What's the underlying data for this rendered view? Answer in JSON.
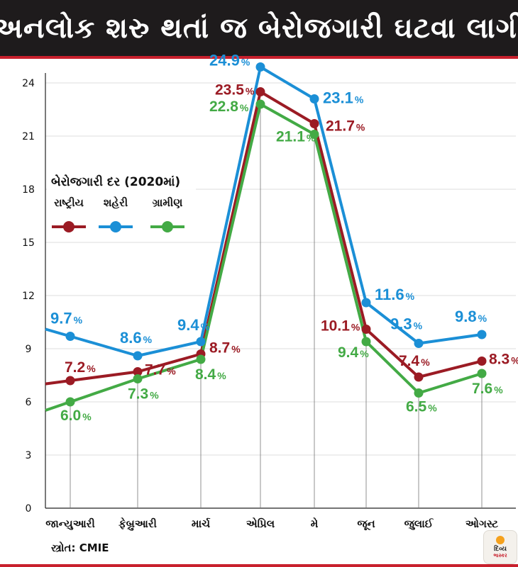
{
  "title": "અનલોક શરુ થતાં જ બેરોજગારી ઘટવા લાગી",
  "source": "સ્ત્રોત: CMIE",
  "logo": {
    "line1": "દિવ્ય",
    "line2": "ભાસ્કર"
  },
  "colors": {
    "national": "#9b1b24",
    "urban": "#1b8fd6",
    "rural": "#43aa45",
    "accent": "#c8202d"
  },
  "chart_data": {
    "type": "line",
    "title": "",
    "categories": [
      "જાન્યુઆરી",
      "ફેબ્રુઆરી",
      "માર્ચ",
      "એપ્રિલ",
      "મે",
      "જૂન",
      "જુલાઈ",
      "ઓગસ્ટ"
    ],
    "ylim": [
      0,
      24
    ],
    "yticks": [
      0,
      3,
      6,
      9,
      12,
      15,
      18,
      21,
      24
    ],
    "grid": true,
    "legend": {
      "title": "બેરોજગારી દર (2020માં)",
      "position": "middle-left"
    },
    "value_suffix": "%",
    "series": [
      {
        "key": "national",
        "name": "રાષ્ટ્રીય",
        "values": [
          7.2,
          7.7,
          8.7,
          23.5,
          21.7,
          10.1,
          7.4,
          8.3
        ],
        "labels": [
          "7.2",
          "7.7",
          "8.7",
          "23.5",
          "21.7",
          "10.1",
          "7.4",
          "8.3"
        ]
      },
      {
        "key": "urban",
        "name": "શહેરી",
        "values": [
          9.7,
          8.6,
          9.4,
          24.9,
          23.1,
          11.6,
          9.3,
          9.8
        ],
        "labels": [
          "9.7",
          "8.6",
          "9.4",
          "24.9",
          "23.1",
          "11.6",
          "9.3",
          "9.8"
        ]
      },
      {
        "key": "rural",
        "name": "ગ્રામીણ",
        "values": [
          6.0,
          7.3,
          8.4,
          22.8,
          21.1,
          9.4,
          6.5,
          7.6
        ],
        "labels": [
          "6.0",
          "7.3",
          "8.4",
          "22.8",
          "21.1",
          "9.4",
          "6.5",
          "7.6"
        ]
      }
    ]
  }
}
